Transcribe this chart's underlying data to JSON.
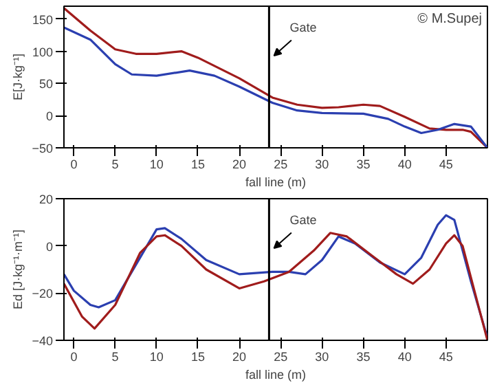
{
  "chart_data": [
    {
      "type": "line",
      "xlabel": "fall line (m)",
      "ylabel": "E[J·kg⁻¹]",
      "xlim": [
        -1.2,
        50
      ],
      "ylim": [
        -50,
        170
      ],
      "xticks": [
        0,
        5,
        10,
        15,
        20,
        25,
        30,
        35,
        40,
        45
      ],
      "yticks": [
        -50,
        0,
        50,
        100,
        150
      ],
      "grid": false,
      "annotations": [
        "© M.Supej"
      ],
      "ref_lines": [
        {
          "axis": "x",
          "value": 23.6,
          "label": "Gate",
          "color": "#000000"
        }
      ],
      "series": [
        {
          "color": "#a01c1c",
          "x": [
            -1.2,
            2,
            5,
            7.5,
            10,
            13,
            15,
            20,
            24,
            27,
            30,
            32,
            35,
            37,
            40,
            43,
            45,
            47,
            48,
            50
          ],
          "values": [
            167,
            132,
            103,
            96,
            96,
            100,
            90,
            58,
            28,
            17,
            12,
            13,
            17,
            15,
            -2,
            -20,
            -22,
            -22,
            -25,
            -50
          ]
        },
        {
          "color": "#2b3fb0",
          "x": [
            -1.2,
            2,
            5,
            7,
            10,
            14,
            17,
            20,
            24,
            27,
            30,
            35,
            38,
            40,
            42,
            44,
            46,
            48,
            50
          ],
          "values": [
            137,
            118,
            80,
            64,
            62,
            70,
            62,
            45,
            20,
            8,
            4,
            3,
            -5,
            -17,
            -27,
            -22,
            -13,
            -17,
            -50
          ]
        }
      ]
    },
    {
      "type": "line",
      "xlabel": "fall line (m)",
      "ylabel": "Ed [J·kg⁻¹·m⁻¹]",
      "xlim": [
        -1.2,
        50
      ],
      "ylim": [
        -40,
        20
      ],
      "xticks": [
        0,
        5,
        10,
        15,
        20,
        25,
        30,
        35,
        40,
        45
      ],
      "yticks": [
        -40,
        -20,
        0,
        20
      ],
      "grid": false,
      "ref_lines": [
        {
          "axis": "x",
          "value": 23.6,
          "label": "Gate",
          "color": "#000000"
        }
      ],
      "series": [
        {
          "color": "#2b3fb0",
          "x": [
            -1.2,
            0,
            2,
            3,
            5,
            8,
            10,
            11,
            13,
            16,
            20,
            24,
            26,
            28,
            30,
            32,
            34,
            37,
            40,
            42,
            44,
            45,
            46,
            48,
            50
          ],
          "values": [
            -12,
            -19,
            -25,
            -26,
            -23,
            -5,
            7,
            7.5,
            3,
            -6,
            -12,
            -11,
            -11,
            -12,
            -6,
            4,
            1,
            -7,
            -12,
            -5,
            9,
            13,
            11,
            -15,
            -39
          ]
        },
        {
          "color": "#a01c1c",
          "x": [
            -1.2,
            1,
            2.5,
            5,
            8,
            10,
            11,
            13,
            16,
            20,
            23,
            26,
            29,
            31,
            33,
            36,
            39,
            41,
            43,
            45,
            46,
            47,
            50
          ],
          "values": [
            -16,
            -30,
            -35,
            -25,
            -3,
            4,
            4.5,
            0,
            -10,
            -18,
            -15,
            -11,
            -2,
            5.5,
            4,
            -4,
            -12,
            -16,
            -10,
            1,
            4.5,
            0,
            -40
          ]
        }
      ]
    }
  ]
}
